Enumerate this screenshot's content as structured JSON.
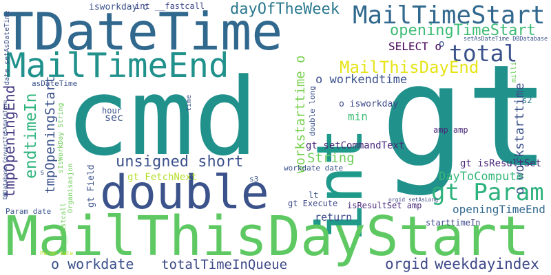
{
  "words": [
    {
      "text": "cmd",
      "color": "#21918c"
    },
    {
      "text": "gt",
      "color": "#21918c"
    },
    {
      "text": "int",
      "color": "#1f9a8a"
    },
    {
      "text": "MailThisDayStart",
      "color": "#5ec962"
    },
    {
      "text": "TDateTime",
      "color": "#31688e"
    },
    {
      "text": "MailTimeEnd",
      "color": "#21918c"
    },
    {
      "text": "double",
      "color": "#3b528b"
    },
    {
      "text": "MailTimeStart",
      "color": "#31688e"
    },
    {
      "text": "gt Param",
      "color": "#2db27d"
    },
    {
      "text": "total",
      "color": "#3b528b"
    },
    {
      "text": "MailThisDayEnd",
      "color": "#e6e419"
    },
    {
      "text": "openingTimeStart",
      "color": "#3dbc74"
    },
    {
      "text": "dayOfTheWeek",
      "color": "#2a788e"
    },
    {
      "text": "unsigned short",
      "color": "#3b528b"
    },
    {
      "text": "weekdayindex",
      "color": "#3e4989"
    },
    {
      "text": "totalTimeInQueue",
      "color": "#3e4989"
    },
    {
      "text": "o workdate",
      "color": "#3b528b"
    },
    {
      "text": "orgid",
      "color": "#3e4989"
    },
    {
      "text": "endtimeIn",
      "color": "#2fb47c"
    },
    {
      "text": "tmpOpeningEnd",
      "color": "#443983"
    },
    {
      "text": "tmpOpeningStart",
      "color": "#3b528b"
    },
    {
      "text": "workstarttime o",
      "color": "#7ad151"
    },
    {
      "text": "o workstarttime",
      "color": "#3b528b"
    },
    {
      "text": "o workendtime",
      "color": "#3b528b"
    },
    {
      "text": "String",
      "color": "#6ece58"
    },
    {
      "text": "DayToCompute",
      "color": "#35b779"
    },
    {
      "text": "openingTimeEnd",
      "color": "#31688e"
    },
    {
      "text": "return",
      "color": "#3e4989"
    },
    {
      "text": "gt setCommandText",
      "color": "#482878"
    },
    {
      "text": "gt isResultSet",
      "color": "#482878"
    },
    {
      "text": "SELECT o",
      "color": "#440154"
    },
    {
      "text": "gt FetchNext",
      "color": "#b5de2b"
    },
    {
      "text": "min",
      "color": "#3dbc74"
    },
    {
      "text": "sec",
      "color": "#3b528b"
    },
    {
      "text": "o isworkday",
      "color": "#3e4989"
    },
    {
      "text": "isworkday o",
      "color": "#3b528b"
    },
    {
      "text": "int __fastcall",
      "color": "#3e4989"
    },
    {
      "text": "gt Field",
      "color": "#3b528b"
    },
    {
      "text": "gt Execute",
      "color": "#3e4989"
    },
    {
      "text": "isResultSet amp",
      "color": "#482878"
    },
    {
      "text": "workdate date",
      "color": "#3b528b"
    },
    {
      "text": "amp amp",
      "color": "#482878"
    },
    {
      "text": "double long",
      "color": "#3b528b"
    },
    {
      "text": "starttimeIn",
      "color": "#3e4989"
    },
    {
      "text": "hour",
      "color": "#3b528b"
    },
    {
      "text": "asDateTime",
      "color": "#3b528b"
    },
    {
      "text": "date setAsDateTime",
      "color": "#3b528b"
    },
    {
      "text": "s3",
      "color": "#3b528b"
    },
    {
      "text": "lt",
      "color": "#3b528b"
    },
    {
      "text": "s2",
      "color": "#2a788e"
    },
    {
      "text": "Param date",
      "color": "#3b528b"
    },
    {
      "text": "sIsWorkDay String",
      "color": "#6ece58"
    },
    {
      "text": "Organisasjon",
      "color": "#6ece58"
    },
    {
      "text": "DBDatabase ConvertToSAdateTime",
      "color": "#3b528b"
    },
    {
      "text": "__fastcall",
      "color": "#6ece58"
    },
    {
      "text": "time",
      "color": "#3b528b"
    },
    {
      "text": "setAsDateTime DBDatabase",
      "color": "#3b528b"
    },
    {
      "text": "milli",
      "color": "#6ece58"
    },
    {
      "text": "orgid setAsLong",
      "color": "#3e4989"
    },
    {
      "text": "Param date",
      "color": "#bddf26"
    },
    {
      "text": "s",
      "color": "#3b528b"
    },
    {
      "text": "o",
      "color": "#3b528b"
    }
  ]
}
